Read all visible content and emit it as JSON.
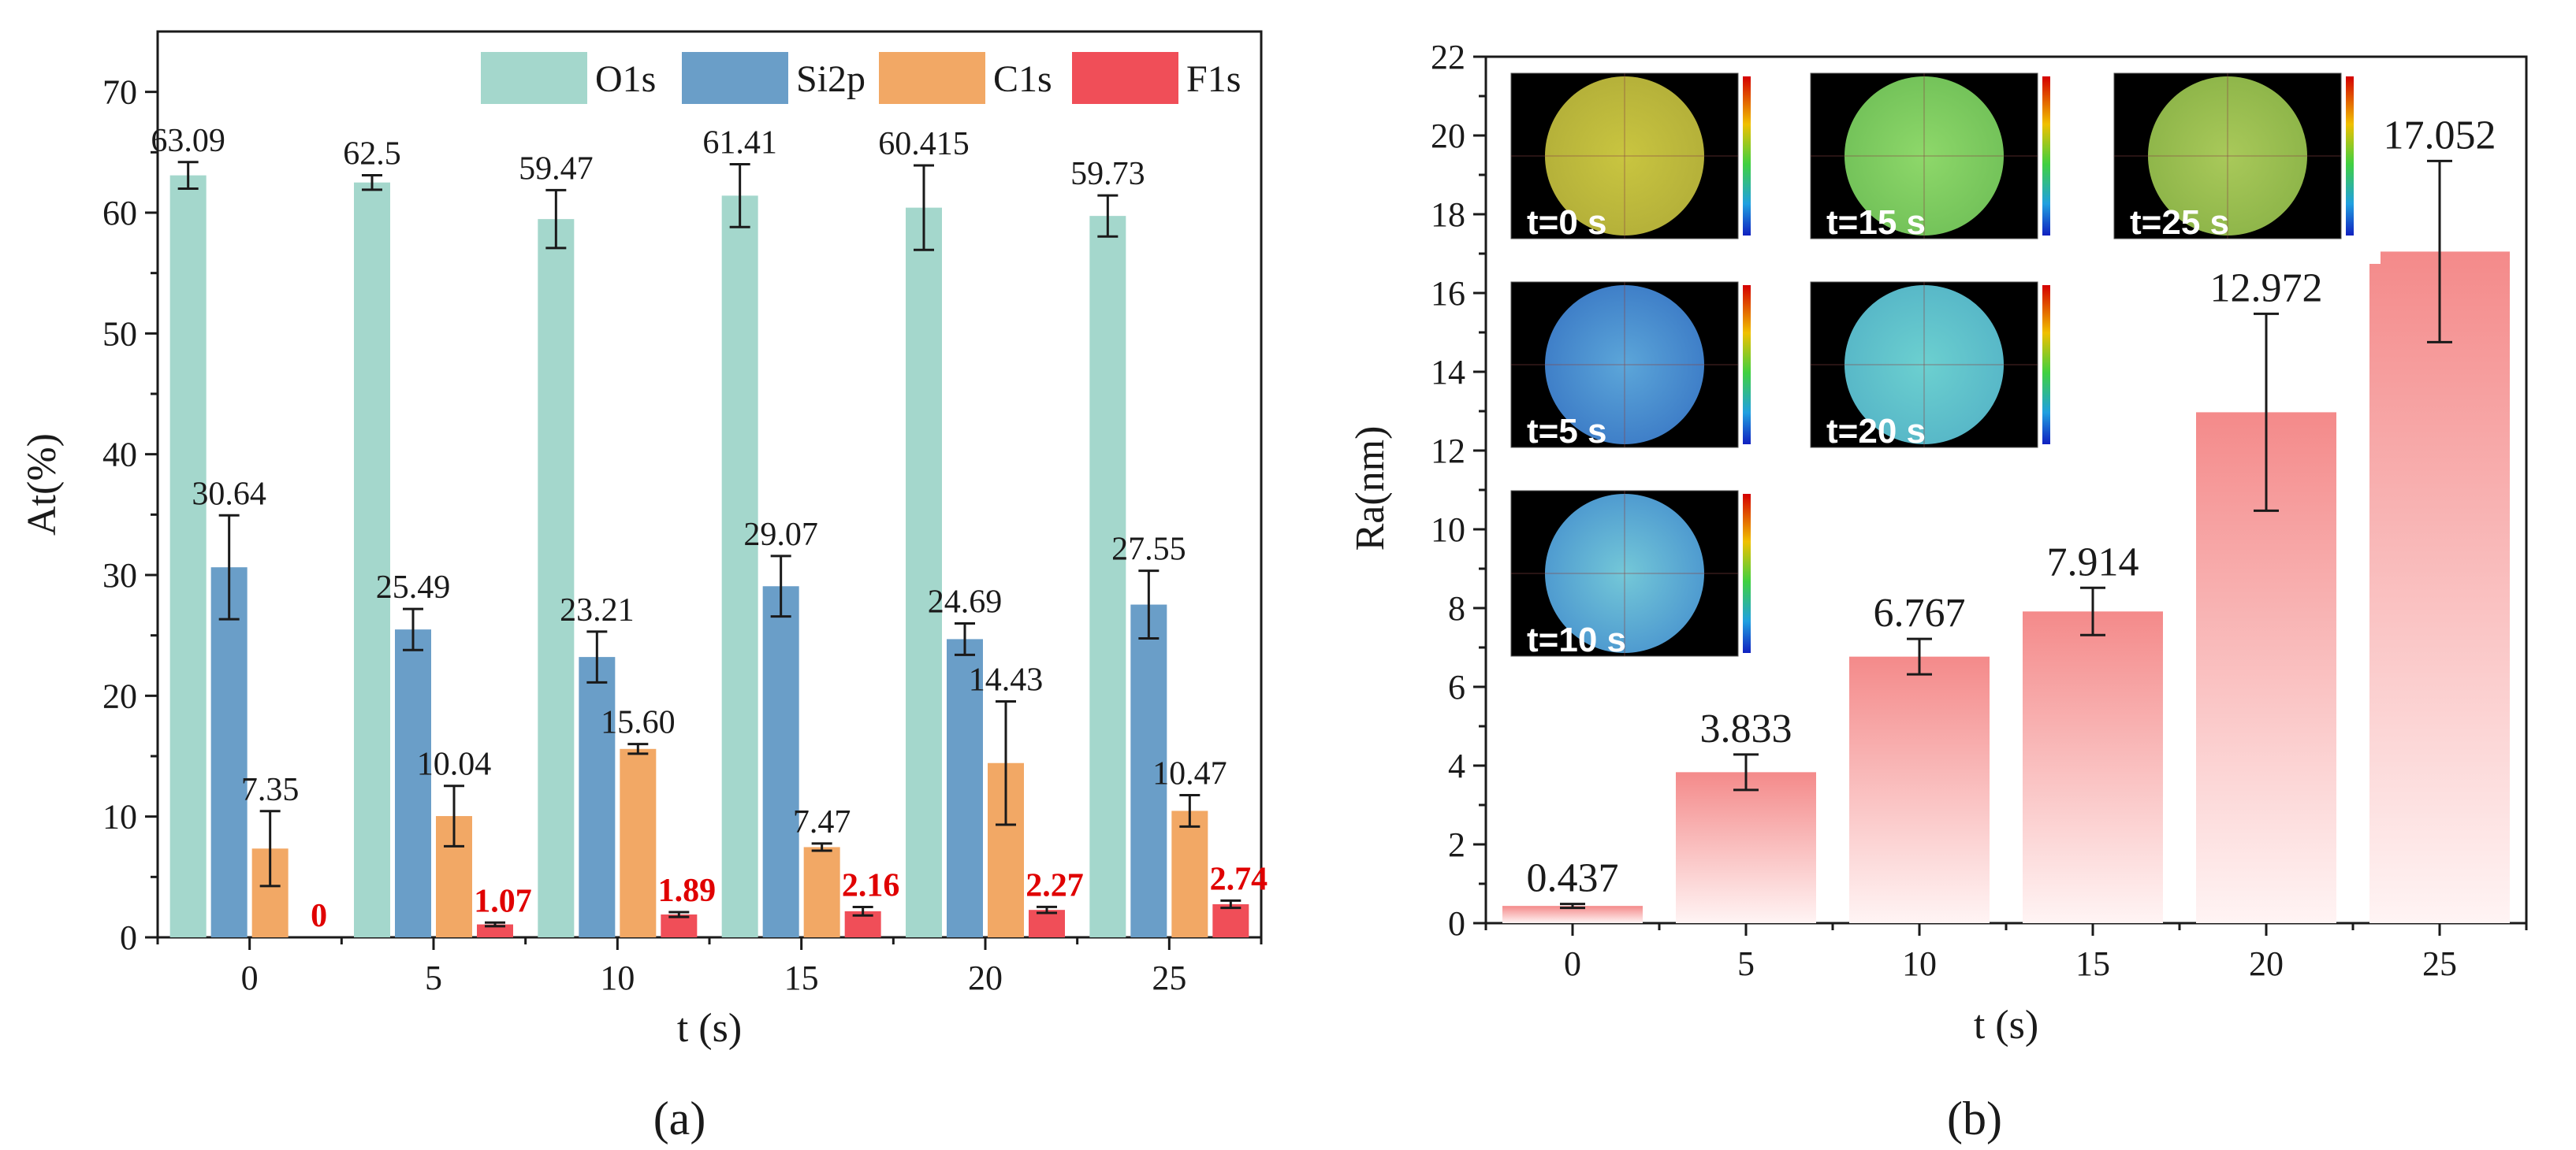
{
  "panel_labels": {
    "a": "(a)",
    "b": "(b)"
  },
  "colors": {
    "O1s": "#a4d7cc",
    "Si2p": "#6a9ec8",
    "C1s": "#f2a865",
    "F1s": "#f04e58",
    "ra_bar_top": "#f48a8a",
    "f1s_label": "#e00000"
  },
  "insets": [
    {
      "label": "t=0 s",
      "pattern": "yellow"
    },
    {
      "label": "t=15 s",
      "pattern": "green"
    },
    {
      "label": "t=25 s",
      "pattern": "green-spots"
    },
    {
      "label": "t=5 s",
      "pattern": "blue"
    },
    {
      "label": "t=20 s",
      "pattern": "cyan"
    },
    {
      "label": "t=10 s",
      "pattern": "cyan-blue"
    }
  ],
  "chart_data": [
    {
      "id": "a",
      "type": "bar",
      "title": "",
      "xlabel": "t (s)",
      "ylabel": "At(%)",
      "categories": [
        "0",
        "5",
        "10",
        "15",
        "20",
        "25"
      ],
      "ylim": [
        0,
        75
      ],
      "yticks": [
        0,
        10,
        20,
        30,
        40,
        50,
        60,
        70
      ],
      "legend": "top-right",
      "series": [
        {
          "name": "O1s",
          "values": [
            63.09,
            62.5,
            59.47,
            61.41,
            60.415,
            59.73
          ],
          "labels": [
            "63.09",
            "62.5",
            "59.47",
            "61.41",
            "60.415",
            "59.73"
          ],
          "errors": [
            1.1,
            0.6,
            2.4,
            2.6,
            3.5,
            1.7
          ]
        },
        {
          "name": "Si2p",
          "values": [
            30.64,
            25.49,
            23.21,
            29.07,
            24.69,
            27.55
          ],
          "labels": [
            "30.64",
            "25.49",
            "23.21",
            "29.07",
            "24.69",
            "27.55"
          ],
          "errors": [
            4.3,
            1.7,
            2.1,
            2.5,
            1.3,
            2.8
          ]
        },
        {
          "name": "C1s",
          "values": [
            7.35,
            10.04,
            15.6,
            7.47,
            14.43,
            10.47
          ],
          "labels": [
            "7.35",
            "10.04",
            "15.60",
            "7.47",
            "14.43",
            "10.47"
          ],
          "errors": [
            3.1,
            2.5,
            0.4,
            0.3,
            5.1,
            1.3
          ]
        },
        {
          "name": "F1s",
          "values": [
            0,
            1.07,
            1.89,
            2.16,
            2.27,
            2.74
          ],
          "labels": [
            "0",
            "1.07",
            "1.89",
            "2.16",
            "2.27",
            "2.74"
          ],
          "errors": [
            0,
            0.15,
            0.2,
            0.35,
            0.25,
            0.3
          ]
        }
      ]
    },
    {
      "id": "b",
      "type": "bar",
      "title": "",
      "xlabel": "t (s)",
      "ylabel": "Ra(nm)",
      "categories": [
        "0",
        "5",
        "10",
        "15",
        "20",
        "25"
      ],
      "ylim": [
        0,
        22
      ],
      "yticks": [
        0,
        2,
        4,
        6,
        8,
        10,
        12,
        14,
        16,
        18,
        20,
        22
      ],
      "series": [
        {
          "name": "Ra",
          "values": [
            0.437,
            3.833,
            6.767,
            7.914,
            12.972,
            17.052
          ],
          "labels": [
            "0.437",
            "3.833",
            "6.767",
            "7.914",
            "12.972",
            "17.052"
          ],
          "errors": [
            0.05,
            0.45,
            0.45,
            0.6,
            2.5,
            2.3
          ]
        }
      ]
    }
  ]
}
